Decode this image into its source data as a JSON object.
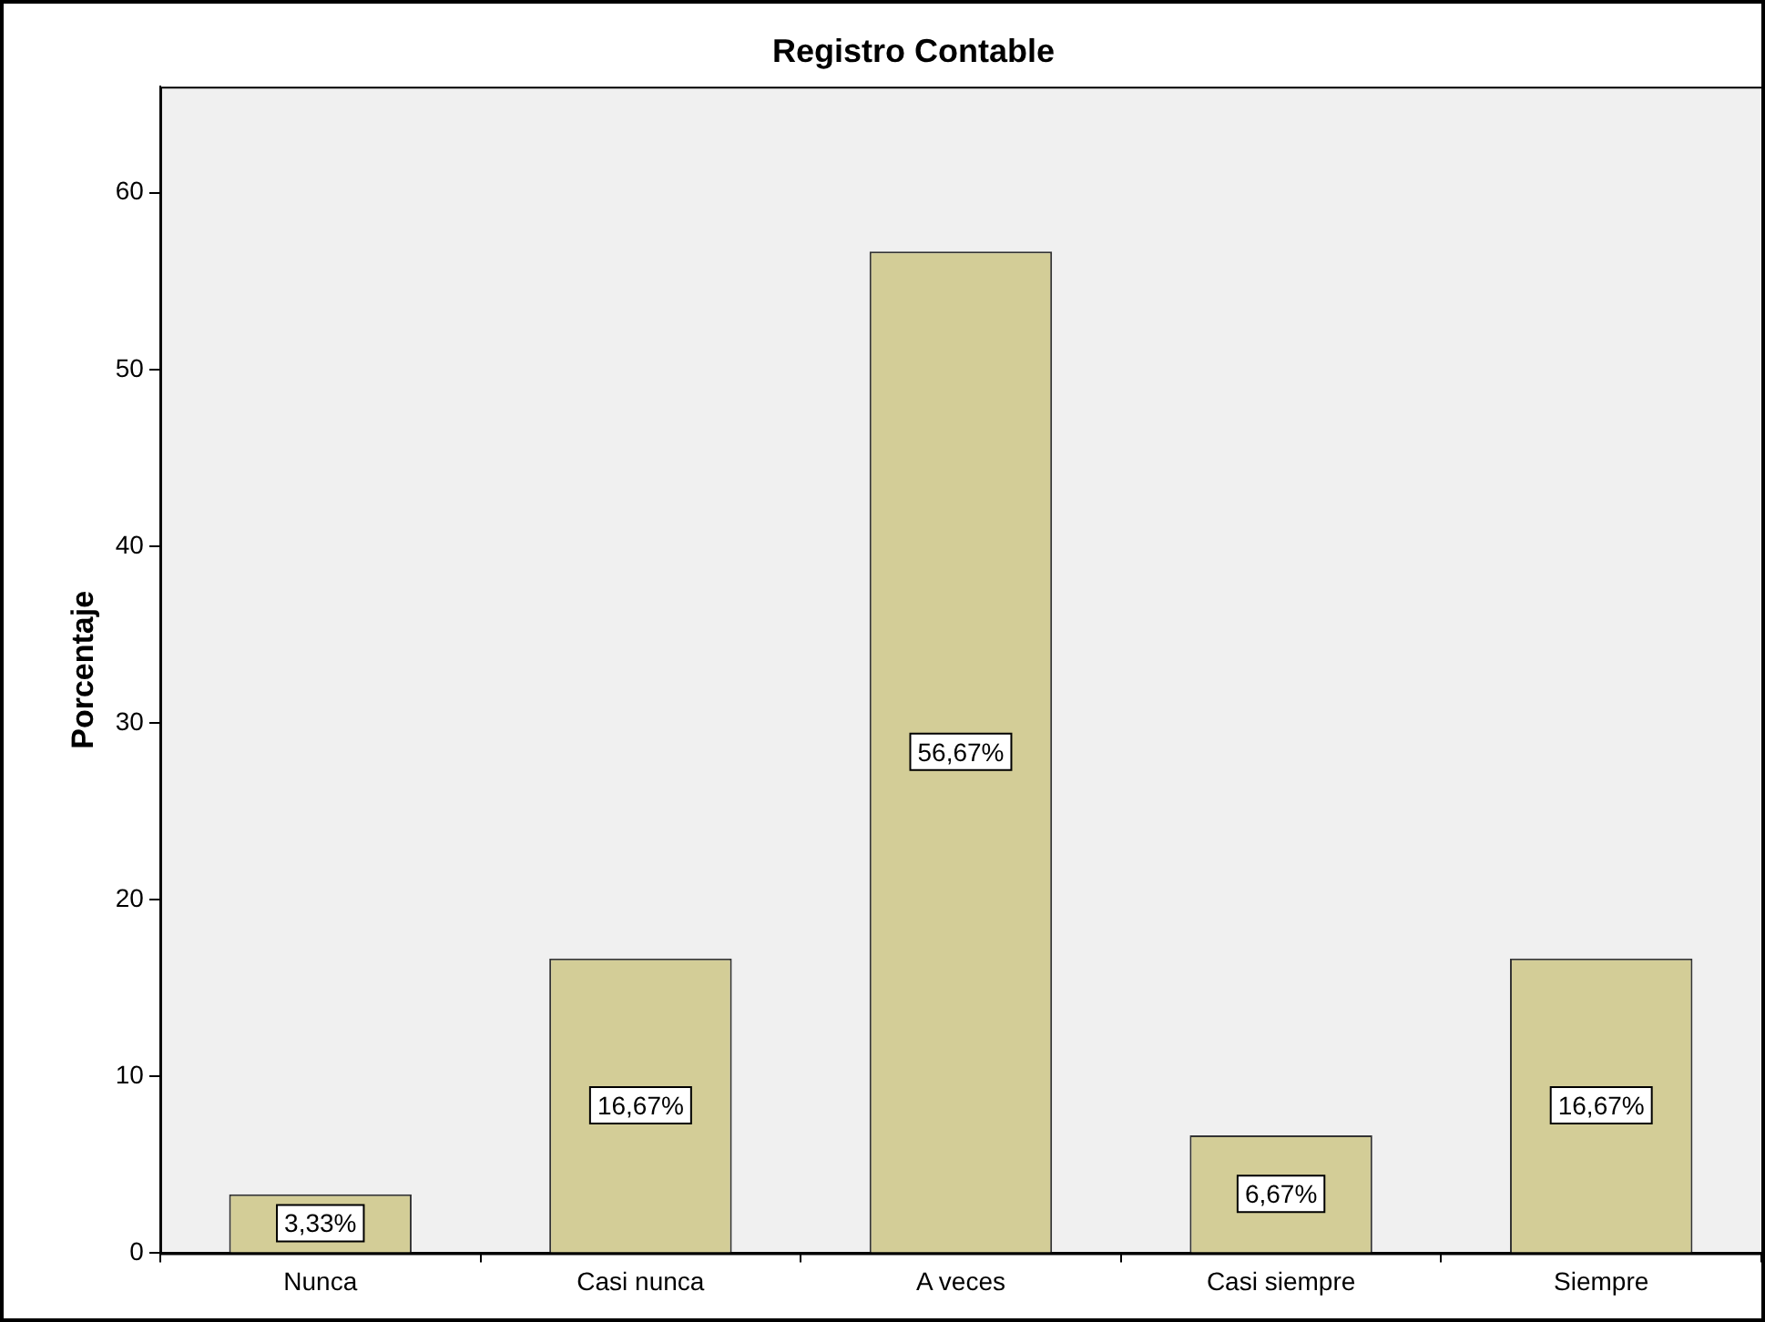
{
  "chart_data": {
    "type": "bar",
    "title": "Registro Contable",
    "ylabel": "Porcentaje",
    "categories": [
      "Nunca",
      "Casi nunca",
      "A veces",
      "Casi siempre",
      "Siempre"
    ],
    "values": [
      3.33,
      16.67,
      56.67,
      6.67,
      16.67
    ],
    "value_labels": [
      "3,33%",
      "16,67%",
      "56,67%",
      "6,67%",
      "16,67%"
    ],
    "color": "#d3cd97",
    "ylim": [
      0,
      66
    ],
    "yticks": [
      0,
      10,
      20,
      30,
      40,
      50,
      60
    ]
  }
}
